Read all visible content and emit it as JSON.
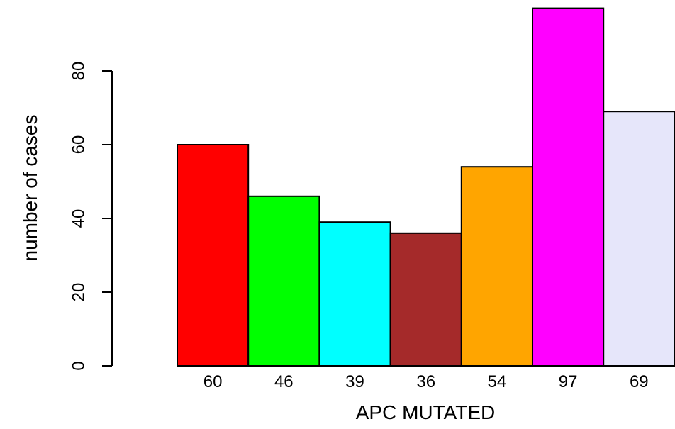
{
  "chart_data": {
    "type": "bar",
    "title": "",
    "xlabel": "APC MUTATED",
    "ylabel": "number of cases",
    "categories": [
      "60",
      "46",
      "39",
      "36",
      "54",
      "97",
      "69"
    ],
    "values": [
      60,
      46,
      39,
      36,
      54,
      97,
      69
    ],
    "colors": [
      "#ff0000",
      "#00ff00",
      "#00ffff",
      "#a52a2a",
      "#ffa500",
      "#ff00ff",
      "#e6e6fa"
    ],
    "ylim": [
      0,
      97
    ],
    "yticks": [
      0,
      20,
      40,
      60,
      80
    ],
    "grid": false,
    "legend": "none"
  }
}
